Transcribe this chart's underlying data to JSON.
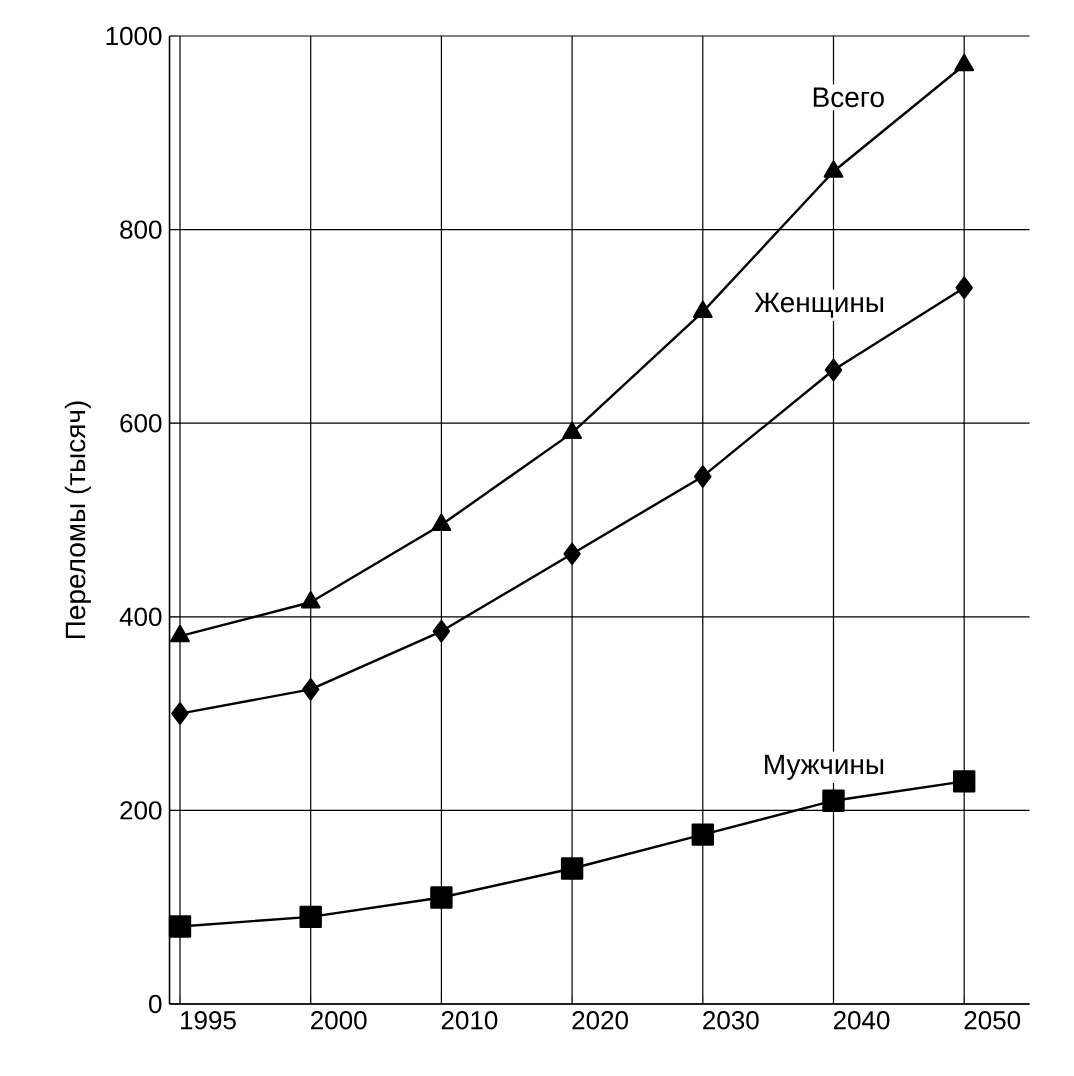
{
  "chart_data": {
    "type": "line",
    "ylabel": "Переломы (тысяч)",
    "categories": [
      "1995",
      "2000",
      "2010",
      "2020",
      "2030",
      "2040",
      "2050"
    ],
    "series": [
      {
        "name": "Всего",
        "color": "#000000",
        "marker": "triangle",
        "values": [
          380,
          415,
          495,
          590,
          715,
          860,
          970
        ]
      },
      {
        "name": "Женщины",
        "color": "#000000",
        "marker": "diamond",
        "values": [
          300,
          325,
          385,
          465,
          545,
          655,
          740
        ]
      },
      {
        "name": "Мужчины",
        "color": "#000000",
        "marker": "square",
        "values": [
          80,
          90,
          110,
          140,
          175,
          210,
          230
        ]
      }
    ],
    "ylim": [
      0,
      1000
    ],
    "yticks": [
      0,
      200,
      400,
      600,
      800,
      1000
    ],
    "grid": true,
    "legend": false,
    "line_style": "solid"
  }
}
